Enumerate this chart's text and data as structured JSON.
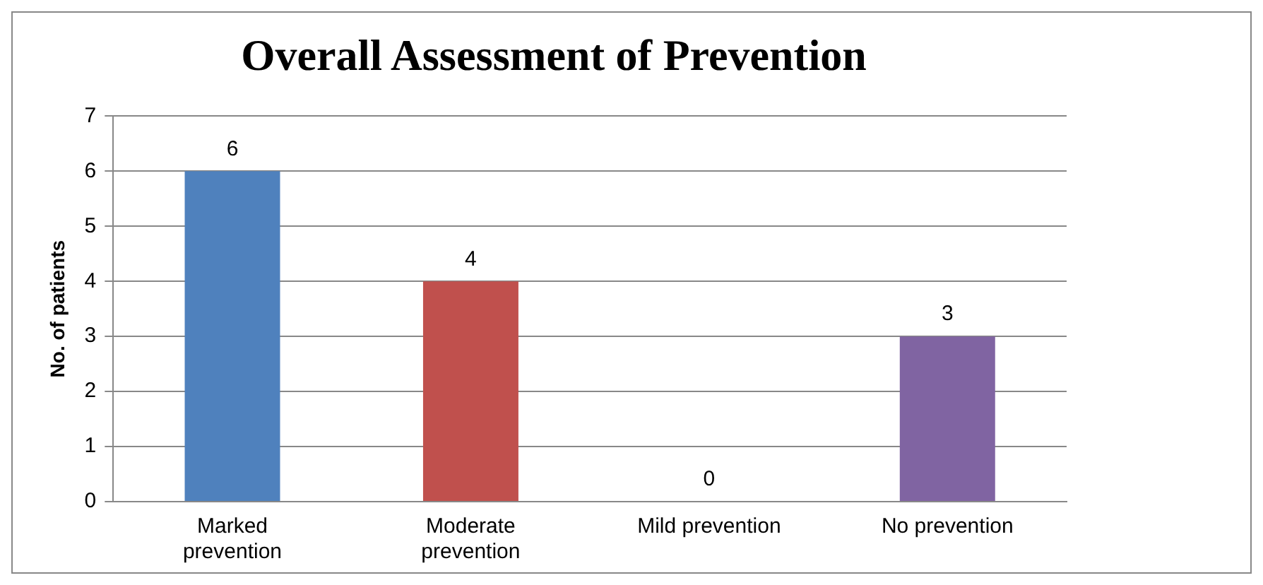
{
  "chart_data": {
    "type": "bar",
    "title": "Overall Assessment of Prevention",
    "ylabel": "No. of patients",
    "categories": [
      "Marked prevention",
      "Moderate prevention",
      "Mild prevention",
      "No prevention"
    ],
    "values": [
      6,
      4,
      0,
      3
    ],
    "colors": [
      "#4f81bd",
      "#c0504d",
      "#9bbb59",
      "#8064a2"
    ],
    "ylim": [
      0,
      7
    ],
    "yticks": [
      0,
      1,
      2,
      3,
      4,
      5,
      6,
      7
    ],
    "grid": "y",
    "data_labels": true,
    "legend": false
  }
}
